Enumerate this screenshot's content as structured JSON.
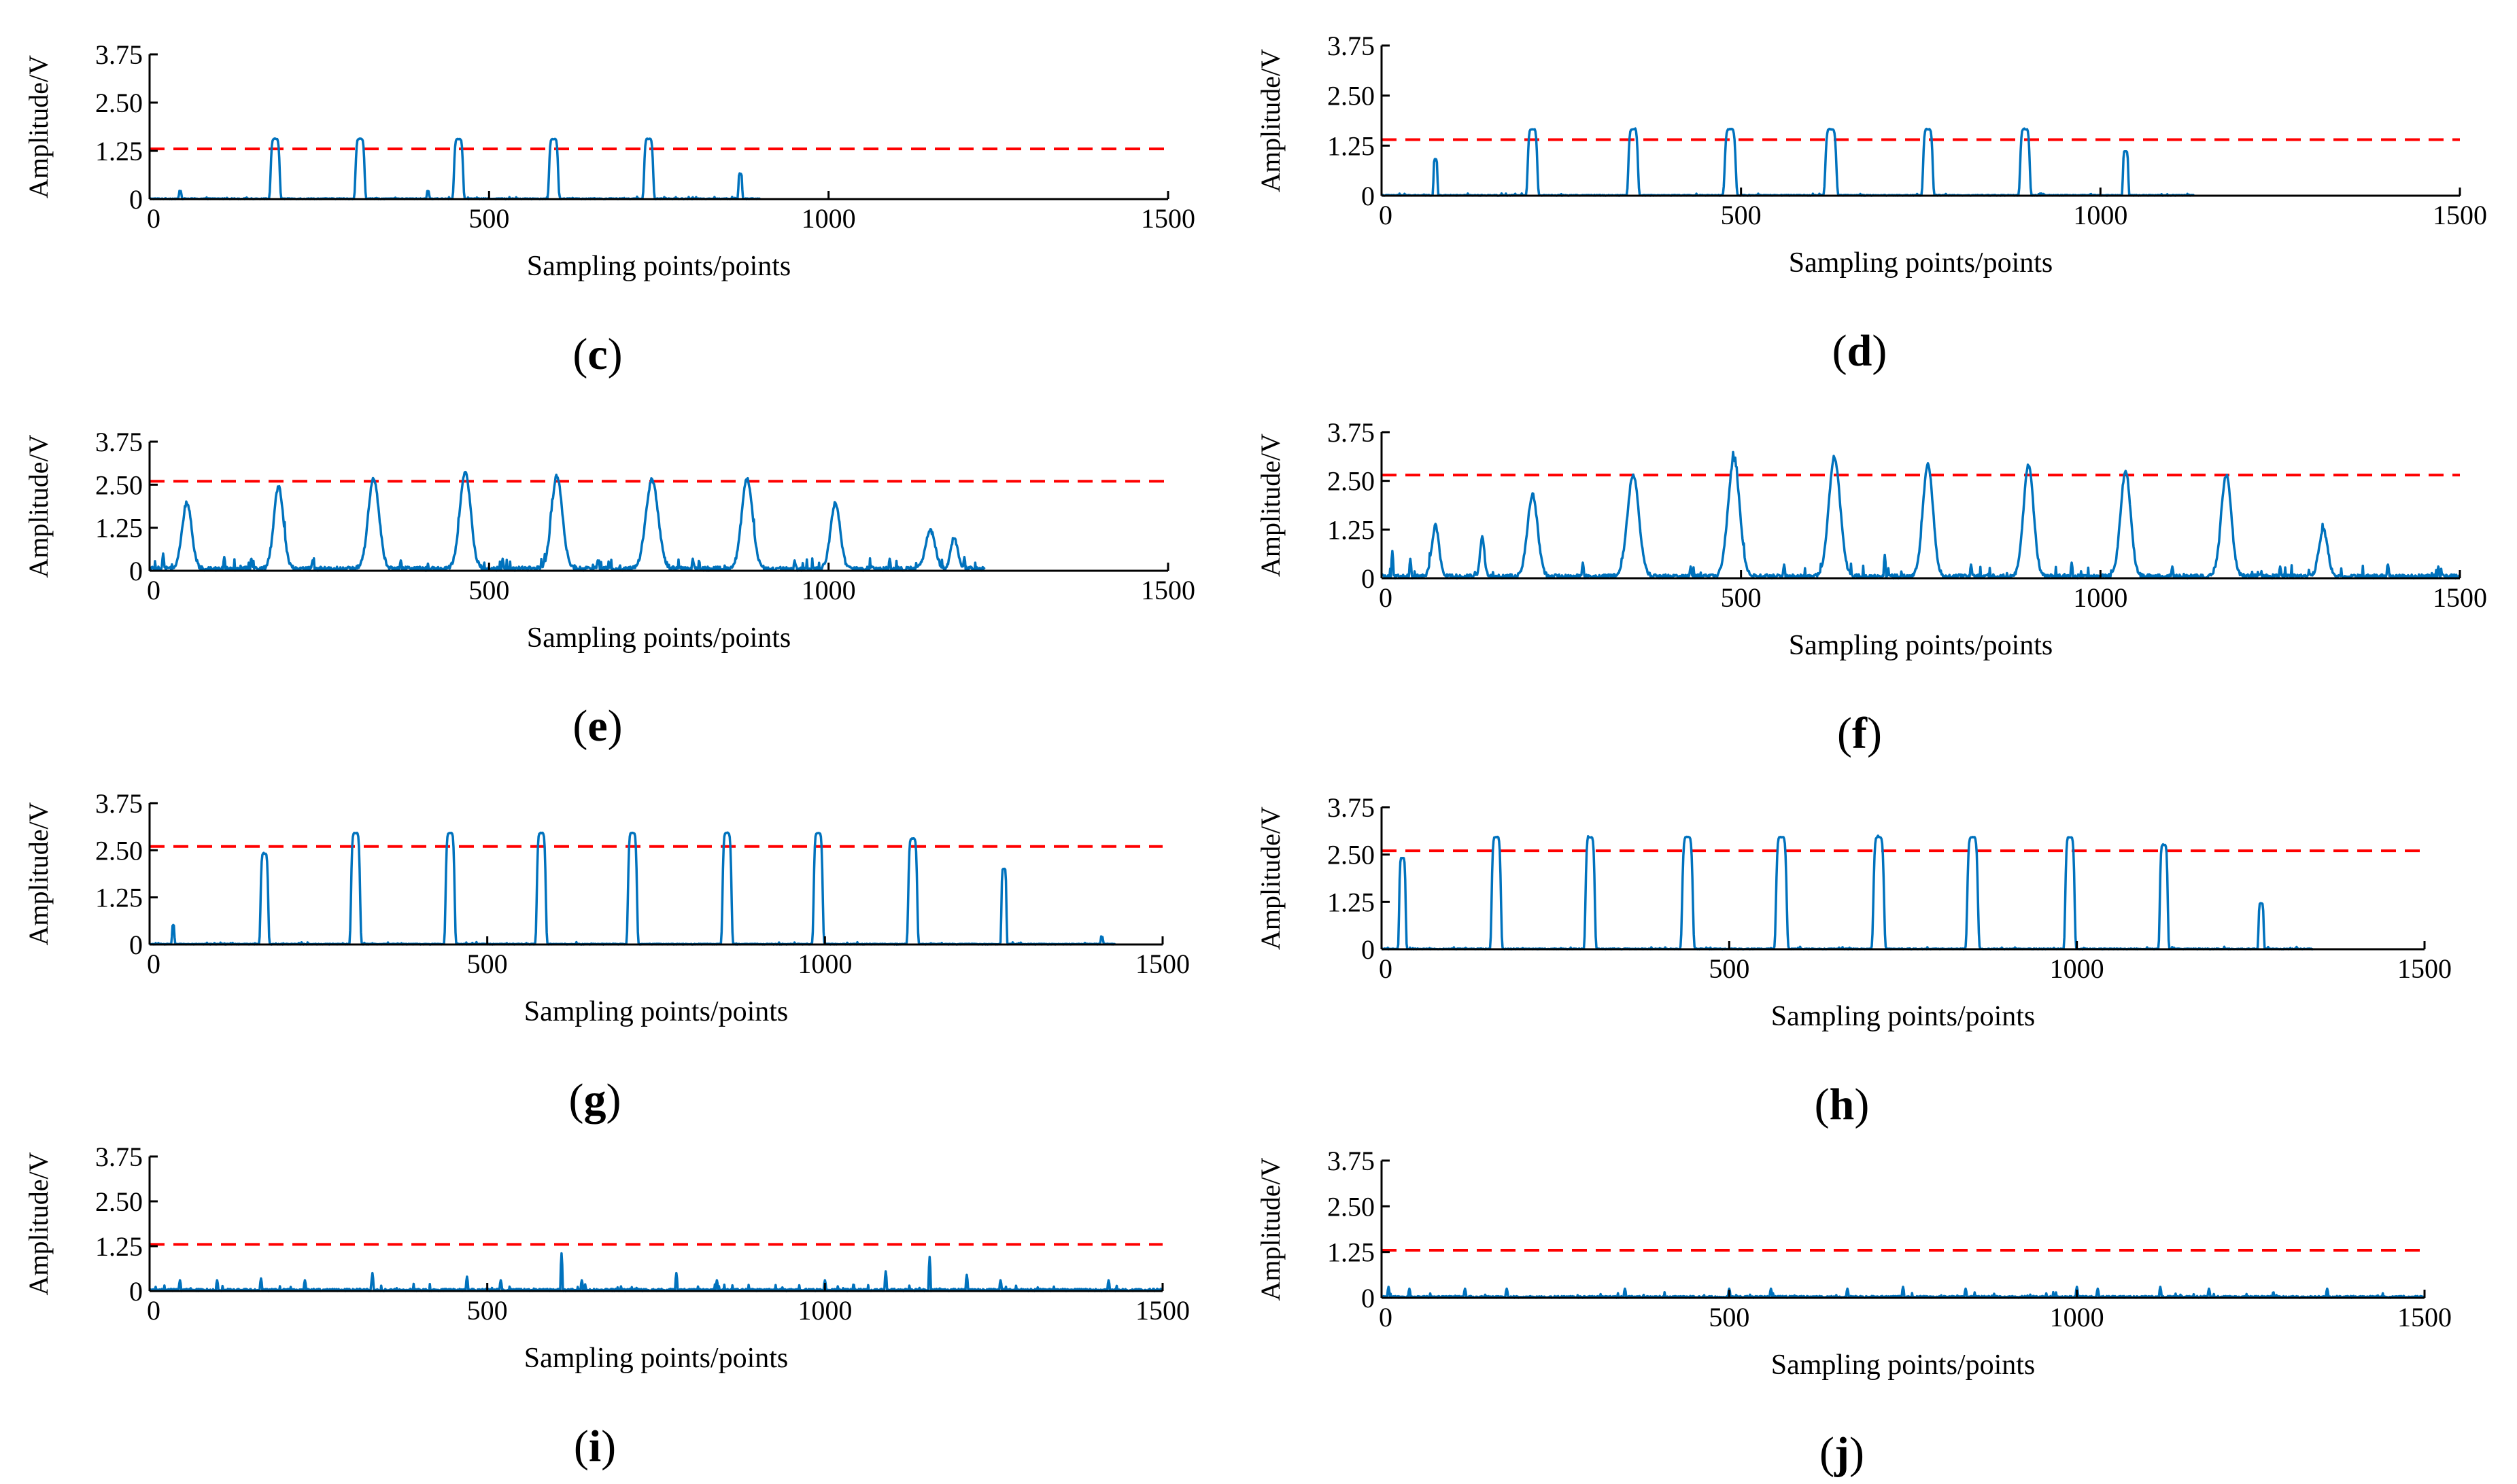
{
  "colors": {
    "signal": "#0072bd",
    "threshold": "#ff0000",
    "axis": "#000000",
    "text": "#000000"
  },
  "chart_data": [
    {
      "id": "c",
      "type": "line",
      "caption": "(c)",
      "caption_letter": "c",
      "xlabel": "Sampling points/points",
      "ylabel": "Amplitude/V",
      "xlim": [
        0,
        1500
      ],
      "ylim": [
        0,
        3.75
      ],
      "xticks": [
        0,
        500,
        1000,
        1500
      ],
      "xtick_labels": [
        "0",
        "500",
        "1000",
        "1500"
      ],
      "yticks": [
        0,
        1.25,
        2.5,
        3.75
      ],
      "ytick_labels": [
        "0",
        "1.25",
        "2.50",
        "3.75"
      ],
      "threshold": 1.3,
      "signal_end": 900,
      "peaks": [
        [
          185,
          1.55,
          7
        ],
        [
          310,
          1.55,
          7
        ],
        [
          455,
          1.55,
          7
        ],
        [
          595,
          1.55,
          7
        ],
        [
          735,
          1.55,
          7
        ],
        [
          870,
          0.65,
          3
        ],
        [
          45,
          0.2,
          2
        ],
        [
          410,
          0.2,
          2
        ]
      ],
      "peak_style": "flat",
      "noise": 0.02,
      "spikes": [],
      "grid": false
    },
    {
      "id": "d",
      "type": "line",
      "caption": "(d)",
      "caption_letter": "d",
      "xlabel": "Sampling points/points",
      "ylabel": "Amplitude/V",
      "xlim": [
        0,
        1500
      ],
      "ylim": [
        0,
        3.75
      ],
      "xticks": [
        0,
        500,
        1000,
        1500
      ],
      "xtick_labels": [
        "0",
        "500",
        "1000",
        "1500"
      ],
      "yticks": [
        0,
        1.25,
        2.5,
        3.75
      ],
      "ytick_labels": [
        "0",
        "1.25",
        "2.50",
        "3.75"
      ],
      "threshold": 1.4,
      "signal_end": 1130,
      "peaks": [
        [
          75,
          0.9,
          3
        ],
        [
          210,
          1.65,
          7
        ],
        [
          350,
          1.65,
          7
        ],
        [
          485,
          1.65,
          8
        ],
        [
          625,
          1.65,
          8
        ],
        [
          760,
          1.65,
          7
        ],
        [
          895,
          1.65,
          7
        ],
        [
          1035,
          1.1,
          4
        ]
      ],
      "peak_style": "flat",
      "noise": 0.02,
      "spikes": [],
      "grid": false
    },
    {
      "id": "e",
      "type": "line",
      "caption": "(e)",
      "caption_letter": "e",
      "xlabel": "Sampling points/points",
      "ylabel": "Amplitude/V",
      "xlim": [
        0,
        1500
      ],
      "ylim": [
        0,
        3.75
      ],
      "xticks": [
        0,
        500,
        1000,
        1500
      ],
      "xtick_labels": [
        "0",
        "500",
        "1000",
        "1500"
      ],
      "yticks": [
        0,
        1.25,
        2.5,
        3.75
      ],
      "ytick_labels": [
        "0",
        "1.25",
        "2.50",
        "3.75"
      ],
      "threshold": 2.6,
      "signal_end": 1230,
      "peaks": [
        [
          55,
          1.9,
          7
        ],
        [
          190,
          2.4,
          7
        ],
        [
          330,
          2.6,
          8
        ],
        [
          465,
          2.8,
          8
        ],
        [
          600,
          2.7,
          8
        ],
        [
          740,
          2.6,
          9
        ],
        [
          880,
          2.6,
          8
        ],
        [
          1010,
          1.9,
          7
        ],
        [
          1150,
          1.1,
          7
        ],
        [
          1185,
          0.9,
          5
        ]
      ],
      "peak_style": "gauss",
      "noise": 0.12,
      "spikes": [
        [
          20,
          0.5
        ],
        [
          110,
          0.4
        ],
        [
          150,
          0.35
        ],
        [
          240,
          0.3
        ],
        [
          370,
          0.3
        ],
        [
          520,
          0.35
        ],
        [
          660,
          0.3
        ],
        [
          800,
          0.35
        ],
        [
          950,
          0.3
        ],
        [
          1090,
          0.35
        ],
        [
          1200,
          0.4
        ]
      ],
      "grid": false
    },
    {
      "id": "f",
      "type": "line",
      "caption": "(f)",
      "caption_letter": "f",
      "xlabel": "Sampling points/points",
      "ylabel": "Amplitude/V",
      "xlim": [
        0,
        1500
      ],
      "ylim": [
        0,
        3.75
      ],
      "xticks": [
        0,
        500,
        1000,
        1500
      ],
      "xtick_labels": [
        "0",
        "500",
        "1000",
        "1500"
      ],
      "yticks": [
        0,
        1.25,
        2.5,
        3.75
      ],
      "ytick_labels": [
        "0",
        "1.25",
        "2.50",
        "3.75"
      ],
      "threshold": 2.65,
      "signal_end": 1500,
      "peaks": [
        [
          75,
          1.3,
          5
        ],
        [
          140,
          1.0,
          3
        ],
        [
          210,
          2.1,
          7
        ],
        [
          350,
          2.6,
          8
        ],
        [
          490,
          3.0,
          8
        ],
        [
          630,
          3.05,
          8
        ],
        [
          760,
          2.9,
          7
        ],
        [
          900,
          2.85,
          7
        ],
        [
          1035,
          2.7,
          7
        ],
        [
          1175,
          2.6,
          7
        ],
        [
          1310,
          1.2,
          6
        ]
      ],
      "peak_style": "gauss",
      "noise": 0.1,
      "spikes": [
        [
          15,
          0.7
        ],
        [
          40,
          0.5
        ],
        [
          280,
          0.4
        ],
        [
          430,
          0.3
        ],
        [
          560,
          0.35
        ],
        [
          700,
          0.6
        ],
        [
          820,
          0.35
        ],
        [
          960,
          0.4
        ],
        [
          1100,
          0.3
        ],
        [
          1250,
          0.3
        ],
        [
          1400,
          0.35
        ],
        [
          1470,
          0.3
        ]
      ],
      "grid": false
    },
    {
      "id": "g",
      "type": "line",
      "caption": "(g)",
      "caption_letter": "g",
      "xlabel": "Sampling points/points",
      "ylabel": "Amplitude/V",
      "xlim": [
        0,
        1500
      ],
      "ylim": [
        0,
        3.75
      ],
      "xticks": [
        0,
        500,
        1000,
        1500
      ],
      "xtick_labels": [
        "0",
        "500",
        "1000",
        "1500"
      ],
      "yticks": [
        0,
        1.25,
        2.5,
        3.75
      ],
      "ytick_labels": [
        "0",
        "1.25",
        "2.50",
        "3.75"
      ],
      "threshold": 2.6,
      "signal_end": 1430,
      "peaks": [
        [
          35,
          0.5,
          2
        ],
        [
          170,
          2.4,
          6
        ],
        [
          305,
          2.95,
          7
        ],
        [
          445,
          2.95,
          7
        ],
        [
          580,
          2.95,
          7
        ],
        [
          715,
          2.95,
          7
        ],
        [
          855,
          2.95,
          7
        ],
        [
          990,
          2.95,
          7
        ],
        [
          1130,
          2.8,
          7
        ],
        [
          1265,
          2.0,
          4
        ],
        [
          1410,
          0.2,
          2
        ]
      ],
      "peak_style": "flat",
      "noise": 0.02,
      "spikes": [],
      "grid": false
    },
    {
      "id": "h",
      "type": "line",
      "caption": "(h)",
      "caption_letter": "h",
      "xlabel": "Sampling points/points",
      "ylabel": "Amplitude/V",
      "xlim": [
        0,
        1500
      ],
      "ylim": [
        0,
        3.75
      ],
      "xticks": [
        0,
        500,
        1000,
        1500
      ],
      "xtick_labels": [
        "0",
        "500",
        "1000",
        "1500"
      ],
      "yticks": [
        0,
        1.25,
        2.5,
        3.75
      ],
      "ytick_labels": [
        "0",
        "1.25",
        "2.50",
        "3.75"
      ],
      "threshold": 2.6,
      "signal_end": 1340,
      "peaks": [
        [
          30,
          2.4,
          5
        ],
        [
          165,
          2.95,
          7
        ],
        [
          300,
          2.95,
          7
        ],
        [
          440,
          2.95,
          8
        ],
        [
          575,
          2.95,
          8
        ],
        [
          715,
          2.95,
          8
        ],
        [
          850,
          2.95,
          8
        ],
        [
          990,
          2.95,
          7
        ],
        [
          1125,
          2.75,
          6
        ],
        [
          1265,
          1.2,
          4
        ]
      ],
      "peak_style": "flat",
      "noise": 0.02,
      "spikes": [],
      "grid": false
    },
    {
      "id": "i",
      "type": "line",
      "caption": "(i)",
      "caption_letter": "i",
      "xlabel": "Sampling points/points",
      "ylabel": "Amplitude/V",
      "xlim": [
        0,
        1500
      ],
      "ylim": [
        0,
        3.75
      ],
      "xticks": [
        0,
        500,
        1000,
        1500
      ],
      "xtick_labels": [
        "0",
        "500",
        "1000",
        "1500"
      ],
      "yticks": [
        0,
        1.25,
        2.5,
        3.75
      ],
      "ytick_labels": [
        "0",
        "1.25",
        "2.50",
        "3.75"
      ],
      "threshold": 1.3,
      "signal_end": 1500,
      "peaks": [],
      "peak_style": "flat",
      "noise": 0.06,
      "spikes": [
        [
          45,
          0.3
        ],
        [
          100,
          0.3
        ],
        [
          165,
          0.35
        ],
        [
          230,
          0.3
        ],
        [
          330,
          0.5
        ],
        [
          470,
          0.4
        ],
        [
          520,
          0.3
        ],
        [
          610,
          1.05
        ],
        [
          640,
          0.3
        ],
        [
          780,
          0.5
        ],
        [
          840,
          0.3
        ],
        [
          1000,
          0.3
        ],
        [
          1090,
          0.55
        ],
        [
          1155,
          0.95
        ],
        [
          1210,
          0.45
        ],
        [
          1260,
          0.3
        ],
        [
          1420,
          0.3
        ]
      ],
      "grid": false
    },
    {
      "id": "j",
      "type": "line",
      "caption": "(j)",
      "caption_letter": "j",
      "xlabel": "Sampling points/points",
      "ylabel": "Amplitude/V",
      "xlim": [
        0,
        1500
      ],
      "ylim": [
        0,
        3.75
      ],
      "xticks": [
        0,
        500,
        1000,
        1500
      ],
      "xtick_labels": [
        "0",
        "500",
        "1000",
        "1500"
      ],
      "yticks": [
        0,
        1.25,
        2.5,
        3.75
      ],
      "ytick_labels": [
        "0",
        "1.25",
        "2.50",
        "3.75"
      ],
      "threshold": 1.3,
      "signal_end": 1500,
      "peaks": [],
      "peak_style": "flat",
      "noise": 0.05,
      "spikes": [
        [
          10,
          0.3
        ],
        [
          40,
          0.25
        ],
        [
          120,
          0.25
        ],
        [
          180,
          0.25
        ],
        [
          350,
          0.25
        ],
        [
          500,
          0.25
        ],
        [
          560,
          0.25
        ],
        [
          670,
          0.25
        ],
        [
          750,
          0.3
        ],
        [
          840,
          0.25
        ],
        [
          1000,
          0.3
        ],
        [
          1030,
          0.25
        ],
        [
          1120,
          0.3
        ],
        [
          1190,
          0.25
        ],
        [
          1360,
          0.25
        ]
      ],
      "grid": false
    }
  ]
}
